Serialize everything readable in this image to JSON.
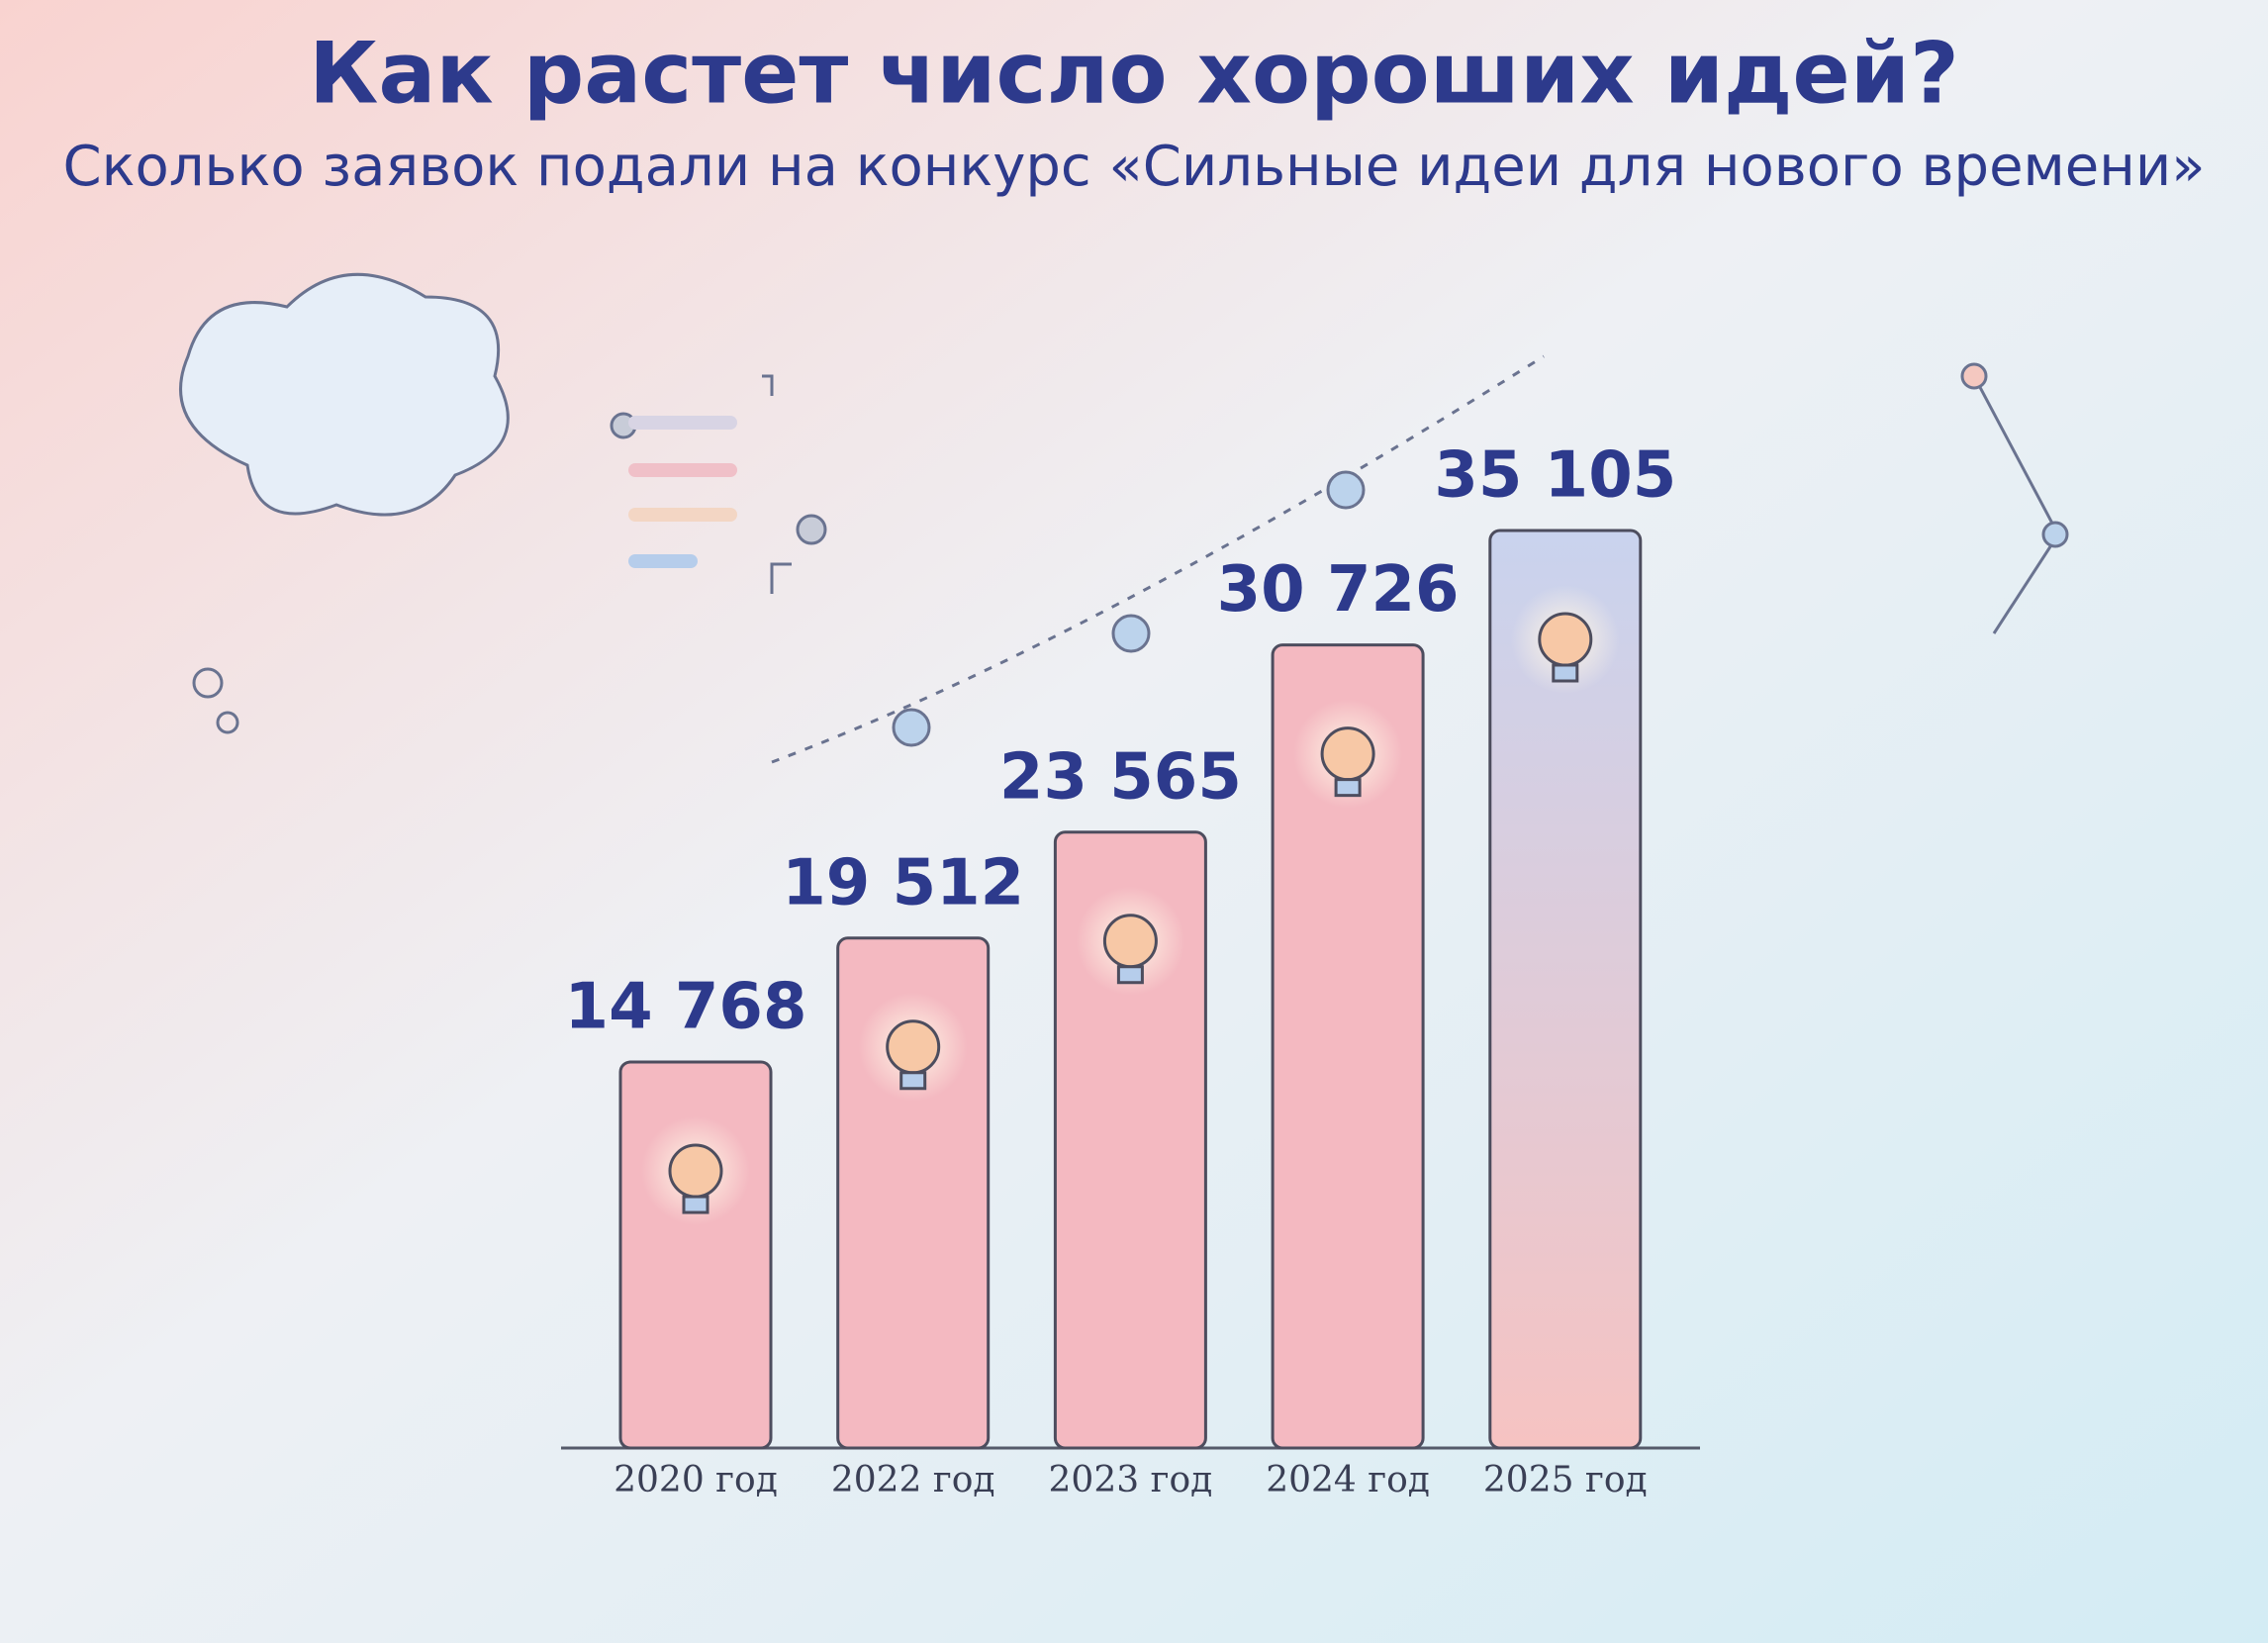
{
  "chart_data": {
    "type": "bar",
    "title": "Как растет число хороших идей?",
    "subtitle": "Сколько заявок подали на конкурс «Сильные идеи для нового времени»",
    "categories": [
      "2020 год",
      "2022 год",
      "2023 год",
      "2024 год",
      "2025 год"
    ],
    "values": [
      14768,
      19512,
      23565,
      30726,
      35105
    ],
    "value_labels": [
      "14 768",
      "19 512",
      "23 565",
      "30 726",
      "35 105"
    ],
    "color": "#f4b9c1"
  }
}
